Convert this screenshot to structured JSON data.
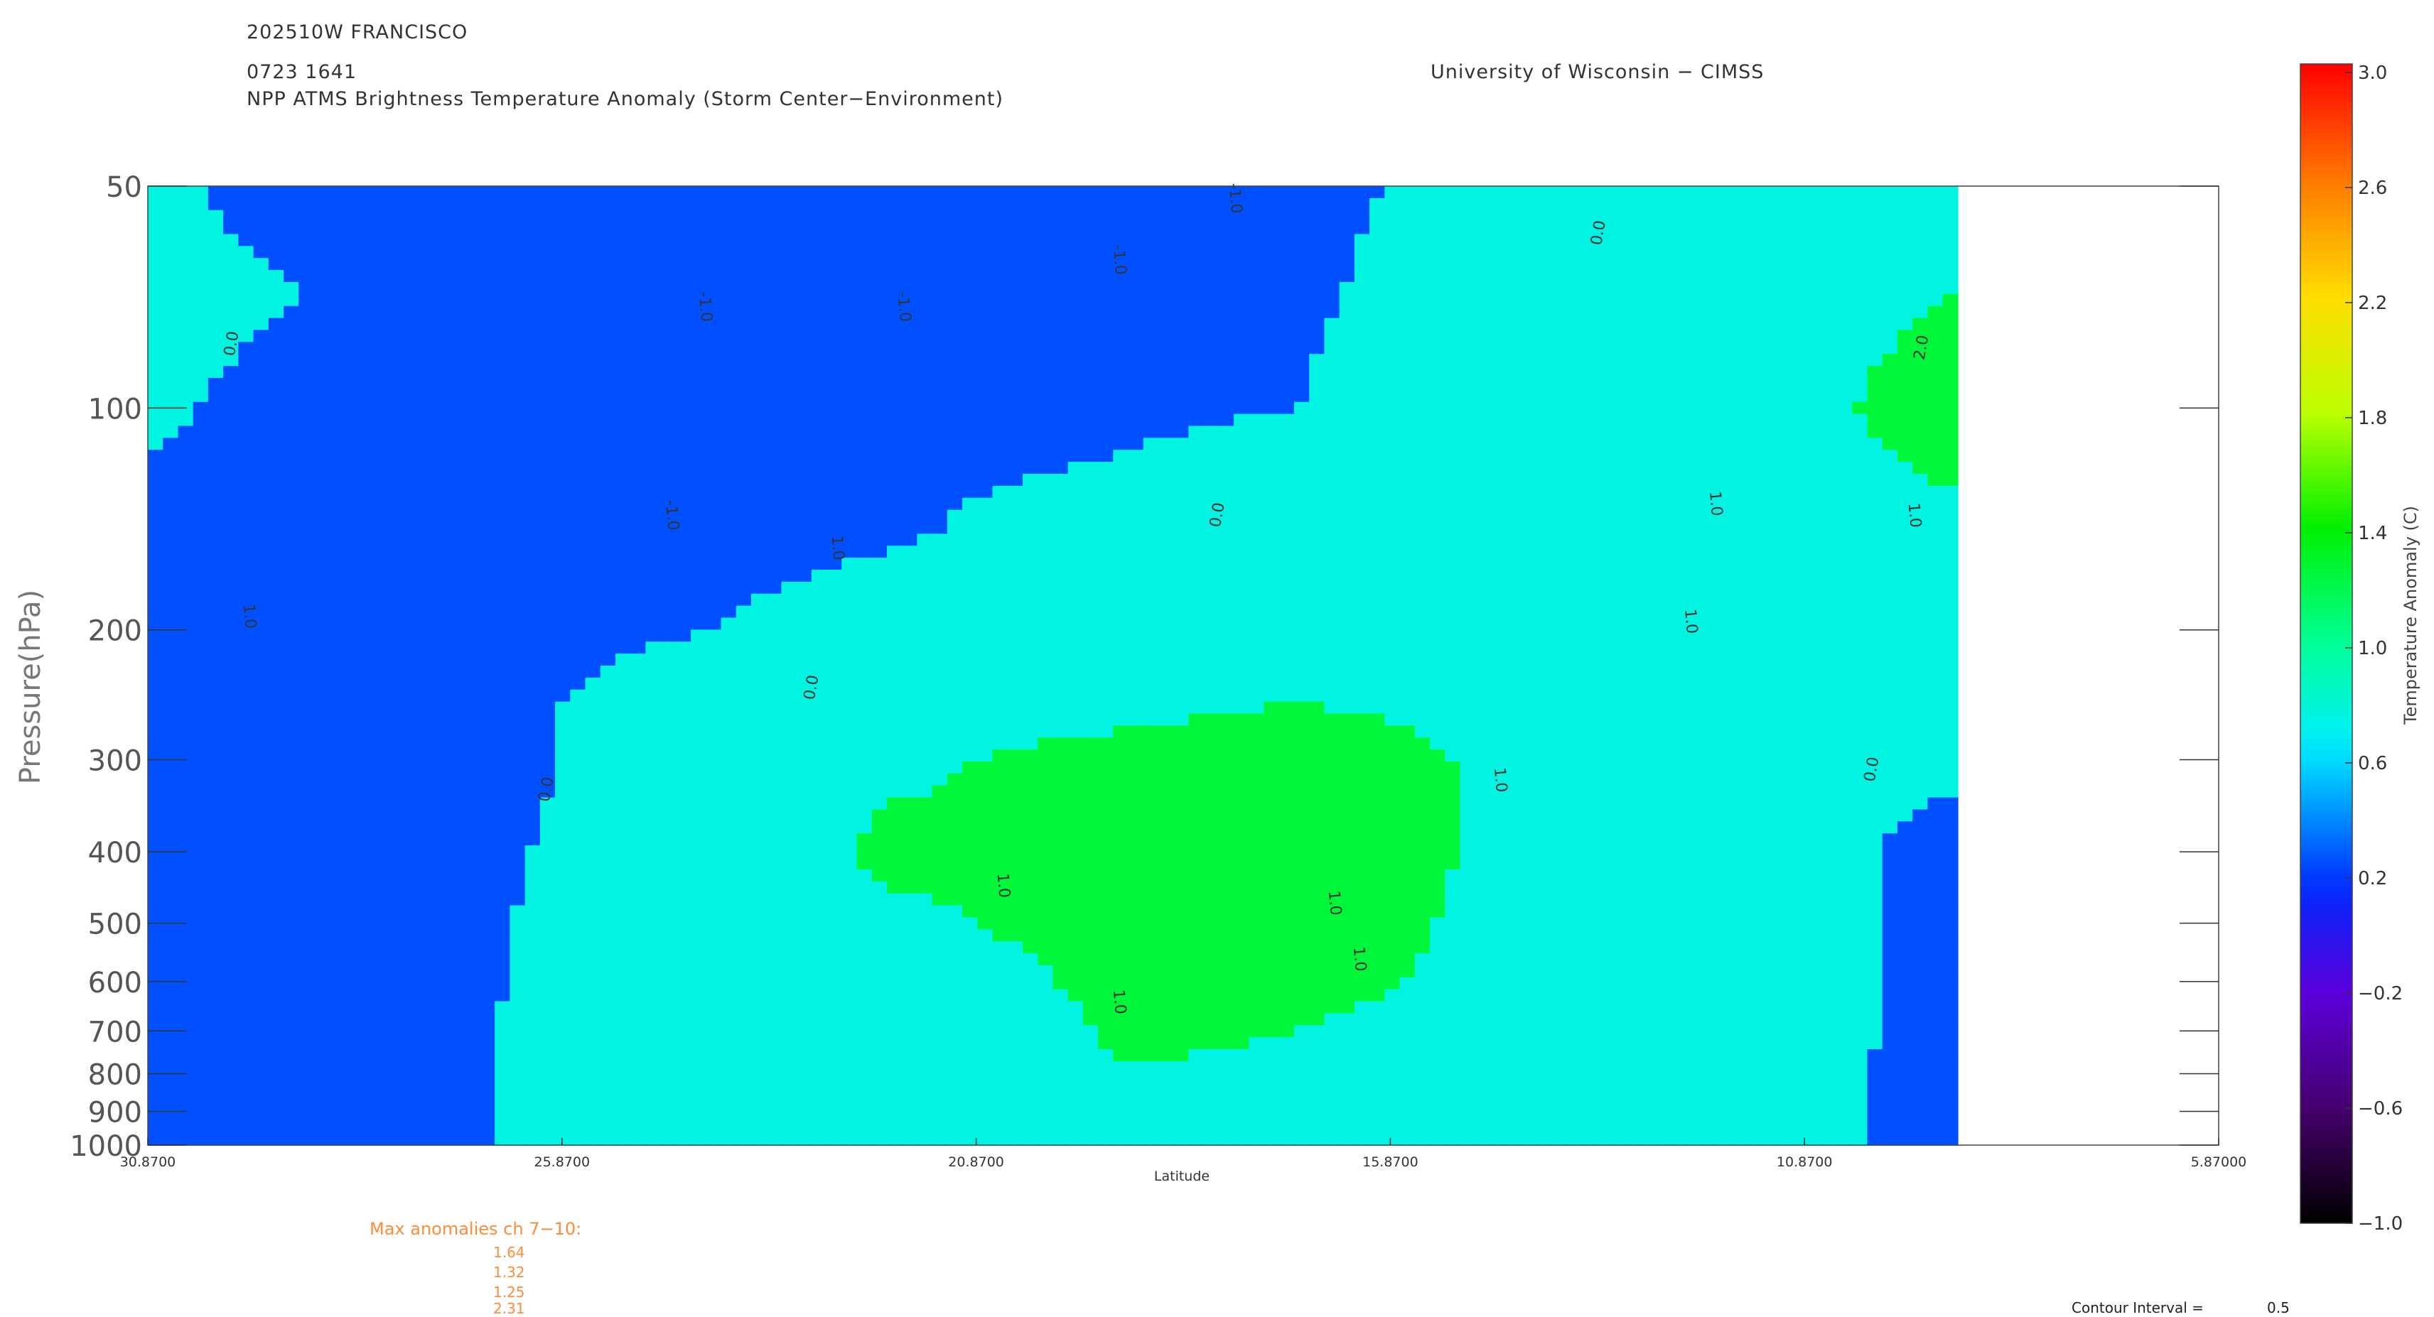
{
  "header": {
    "storm": "202510W FRANCISCO",
    "datetime": "0723 1641",
    "product": "NPP ATMS Brightness Temperature Anomaly (Storm Center−Environment)",
    "institution": "University of Wisconsin − CIMSS"
  },
  "chart_data": {
    "type": "heatmap",
    "xlabel": "Latitude",
    "ylabel": "Pressure(hPa)",
    "x_ticks": [
      "30.8700",
      "25.8700",
      "20.8700",
      "15.8700",
      "10.8700",
      "5.87000"
    ],
    "xlim": [
      30.87,
      5.87
    ],
    "data_extent_lat": [
      30.87,
      9.02
    ],
    "y_ticks": [
      "50",
      "100",
      "200",
      "300",
      "400",
      "500",
      "600",
      "700",
      "800",
      "900",
      "1000"
    ],
    "ylim": [
      1000,
      50
    ],
    "y_scale": "log",
    "contour_interval": 0.5,
    "levels": [
      1000,
      850,
      700,
      500,
      400,
      300,
      250,
      200,
      150,
      100,
      70,
      50
    ],
    "lat_anchors": [
      30.87,
      29,
      27,
      25.87,
      24,
      22,
      20.87,
      19,
      17,
      15.87,
      14,
      12,
      10.87,
      9.02
    ],
    "anomaly": [
      [
        0.15,
        0.15,
        0.4,
        0.7,
        0.7,
        0.7,
        0.7,
        0.75,
        0.75,
        0.75,
        0.7,
        0.6,
        0.6,
        0.35
      ],
      [
        0.15,
        0.15,
        0.4,
        0.7,
        0.7,
        0.8,
        0.85,
        0.95,
        0.95,
        0.9,
        0.75,
        0.65,
        0.6,
        0.35
      ],
      [
        0.15,
        0.15,
        0.4,
        0.7,
        0.7,
        0.85,
        0.85,
        1.05,
        1.0,
        0.95,
        0.75,
        0.65,
        0.6,
        0.4
      ],
      [
        0.15,
        0.1,
        0.4,
        0.6,
        0.8,
        0.95,
        1.0,
        1.1,
        1.1,
        1.1,
        0.75,
        0.65,
        0.6,
        0.4
      ],
      [
        0.15,
        0.15,
        0.4,
        0.55,
        0.8,
        1.05,
        1.05,
        1.15,
        1.15,
        1.15,
        0.8,
        0.65,
        0.6,
        0.4
      ],
      [
        0.2,
        0.2,
        0.35,
        0.5,
        0.8,
        0.95,
        1.0,
        1.05,
        1.1,
        1.1,
        0.85,
        0.7,
        0.6,
        0.55
      ],
      [
        0.25,
        0.25,
        0.35,
        0.5,
        0.75,
        0.9,
        0.95,
        0.95,
        1.0,
        0.95,
        0.8,
        0.7,
        0.6,
        0.6
      ],
      [
        0.3,
        0.3,
        0.3,
        0.4,
        0.5,
        0.75,
        0.85,
        0.85,
        0.9,
        0.95,
        0.8,
        0.7,
        0.7,
        0.75
      ],
      [
        0.4,
        0.3,
        0.25,
        0.25,
        0.35,
        0.45,
        0.55,
        0.6,
        0.75,
        0.8,
        0.8,
        0.8,
        0.85,
        0.9
      ],
      [
        0.55,
        0.4,
        0.25,
        0.2,
        0.3,
        0.3,
        0.4,
        0.45,
        0.5,
        0.6,
        0.7,
        0.85,
        0.9,
        1.2
      ],
      [
        0.6,
        0.5,
        0.35,
        0.3,
        0.3,
        0.3,
        0.35,
        0.4,
        0.45,
        0.55,
        0.65,
        0.75,
        0.85,
        1.0
      ],
      [
        0.55,
        0.4,
        0.3,
        0.3,
        0.3,
        0.3,
        0.35,
        0.4,
        0.45,
        0.5,
        0.6,
        0.7,
        0.8,
        0.95
      ]
    ],
    "contour_labels": [
      "-1.0",
      "0.0",
      "1.0",
      "2.0"
    ]
  },
  "colorbar": {
    "label": "Temperature Anomaly (C)",
    "ticks": [
      "3.0",
      "2.6",
      "2.2",
      "1.8",
      "1.4",
      "1.0",
      "0.6",
      "0.2",
      "−0.2",
      "−0.6",
      "−1.0"
    ],
    "range": [
      -1.0,
      3.0
    ]
  },
  "max_anomalies": {
    "title": "Max anomalies ch 7−10:",
    "values": [
      "1.64",
      "1.32",
      "1.25",
      "2.31"
    ]
  },
  "contour_interval": {
    "label": "Contour Interval =",
    "value": "0.5"
  }
}
